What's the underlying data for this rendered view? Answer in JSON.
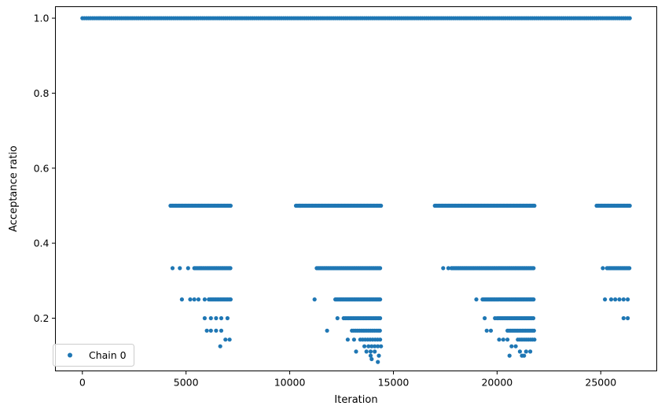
{
  "chart_data": {
    "type": "scatter",
    "title": "",
    "xlabel": "Iteration",
    "ylabel": "Acceptance ratio",
    "xlim": [
      -1300,
      27700
    ],
    "ylim": [
      0.0594,
      1.0306
    ],
    "xticks": [
      0,
      5000,
      10000,
      15000,
      20000,
      25000
    ],
    "yticks": [
      0.2,
      0.4,
      0.6,
      0.8,
      1.0
    ],
    "xtick_labels": [
      "0",
      "5000",
      "10000",
      "15000",
      "20000",
      "25000"
    ],
    "ytick_labels": [
      "0.2",
      "0.4",
      "0.6",
      "0.8",
      "1.0"
    ],
    "grid": false,
    "legend": {
      "position": "lower-left",
      "entries": [
        "Chain 0"
      ]
    },
    "series": [
      {
        "name": "Chain 0",
        "color": "#1f77b4",
        "marker": "circle",
        "segments": [
          {
            "y": 1.0,
            "x_start": 0,
            "x_end": 26400,
            "step": 100
          },
          {
            "y": 0.5,
            "x_start": 4250,
            "x_end": 7150,
            "step": 50
          },
          {
            "y": 0.5,
            "x_start": 10300,
            "x_end": 14400,
            "step": 50
          },
          {
            "y": 0.5,
            "x_start": 17000,
            "x_end": 21800,
            "step": 50
          },
          {
            "y": 0.5,
            "x_start": 24800,
            "x_end": 26400,
            "step": 50
          },
          {
            "y": 0.3333,
            "x_start": 5400,
            "x_end": 7150,
            "step": 60
          },
          {
            "y": 0.3333,
            "x_start": 11300,
            "x_end": 14400,
            "step": 60
          },
          {
            "y": 0.3333,
            "x_start": 17800,
            "x_end": 21800,
            "step": 60
          },
          {
            "y": 0.3333,
            "x_start": 25300,
            "x_end": 26400,
            "step": 60
          },
          {
            "y": 0.25,
            "x_start": 6100,
            "x_end": 7150,
            "step": 70
          },
          {
            "y": 0.25,
            "x_start": 12200,
            "x_end": 14400,
            "step": 60
          },
          {
            "y": 0.25,
            "x_start": 19300,
            "x_end": 21800,
            "step": 60
          },
          {
            "y": 0.2,
            "x_start": 12600,
            "x_end": 14400,
            "step": 80
          },
          {
            "y": 0.2,
            "x_start": 20000,
            "x_end": 21800,
            "step": 70
          },
          {
            "y": 0.1667,
            "x_start": 13000,
            "x_end": 14400,
            "step": 90
          },
          {
            "y": 0.1667,
            "x_start": 20500,
            "x_end": 21800,
            "step": 80
          },
          {
            "y": 0.1429,
            "x_start": 13400,
            "x_end": 14400,
            "step": 120
          },
          {
            "y": 0.1429,
            "x_start": 21000,
            "x_end": 21800,
            "step": 100
          },
          {
            "y": 0.125,
            "x_start": 13800,
            "x_end": 14400,
            "step": 150
          }
        ],
        "points": [
          [
            4350,
            0.3333
          ],
          [
            4800,
            0.25
          ],
          [
            5200,
            0.25
          ],
          [
            5400,
            0.25
          ],
          [
            5600,
            0.25
          ],
          [
            5900,
            0.25
          ],
          [
            4700,
            0.3333
          ],
          [
            5100,
            0.3333
          ],
          [
            5900,
            0.2
          ],
          [
            6200,
            0.2
          ],
          [
            6450,
            0.2
          ],
          [
            6700,
            0.2
          ],
          [
            7000,
            0.2
          ],
          [
            6000,
            0.1667
          ],
          [
            6200,
            0.1667
          ],
          [
            6450,
            0.1667
          ],
          [
            6700,
            0.1667
          ],
          [
            6650,
            0.125
          ],
          [
            6900,
            0.1429
          ],
          [
            7100,
            0.1429
          ],
          [
            10500,
            0.5
          ],
          [
            11800,
            0.1667
          ],
          [
            11200,
            0.25
          ],
          [
            12300,
            0.2
          ],
          [
            12800,
            0.1429
          ],
          [
            13100,
            0.1429
          ],
          [
            13200,
            0.1111
          ],
          [
            13600,
            0.125
          ],
          [
            13700,
            0.1111
          ],
          [
            13900,
            0.1111
          ],
          [
            14100,
            0.1111
          ],
          [
            13900,
            0.1
          ],
          [
            14300,
            0.1
          ],
          [
            13950,
            0.0909
          ],
          [
            14250,
            0.0833
          ],
          [
            17400,
            0.3333
          ],
          [
            17650,
            0.3333
          ],
          [
            19000,
            0.25
          ],
          [
            19400,
            0.2
          ],
          [
            19700,
            0.1667
          ],
          [
            19900,
            0.2
          ],
          [
            19500,
            0.1667
          ],
          [
            20100,
            0.1429
          ],
          [
            20300,
            0.1429
          ],
          [
            20500,
            0.1429
          ],
          [
            20700,
            0.125
          ],
          [
            20900,
            0.125
          ],
          [
            21100,
            0.1111
          ],
          [
            21400,
            0.1111
          ],
          [
            20600,
            0.1
          ],
          [
            21200,
            0.1
          ],
          [
            21300,
            0.1
          ],
          [
            21600,
            0.1111
          ],
          [
            25200,
            0.25
          ],
          [
            25500,
            0.25
          ],
          [
            25700,
            0.25
          ],
          [
            25900,
            0.25
          ],
          [
            26100,
            0.25
          ],
          [
            26300,
            0.25
          ],
          [
            26100,
            0.2
          ],
          [
            26300,
            0.2
          ],
          [
            25100,
            0.3333
          ]
        ]
      }
    ]
  }
}
